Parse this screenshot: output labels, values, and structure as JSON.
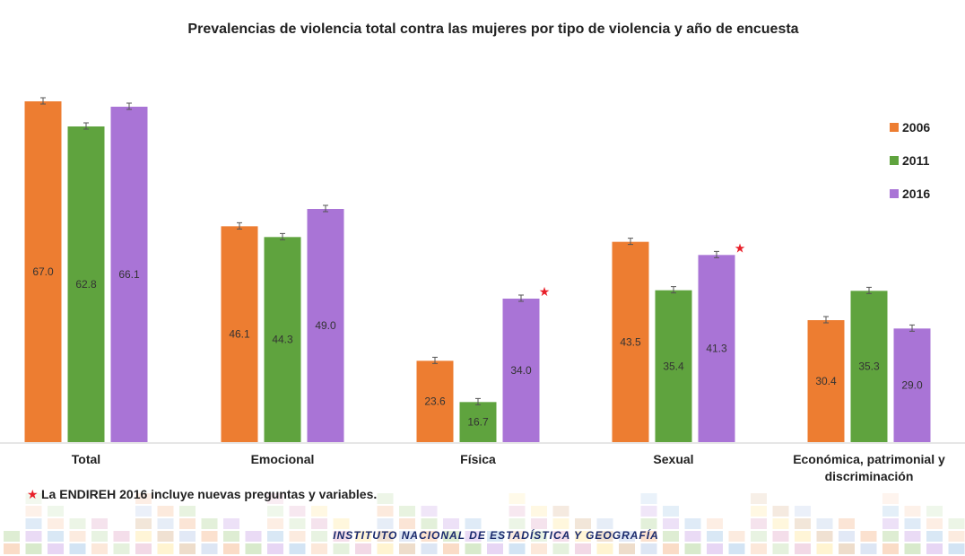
{
  "chart_data": {
    "type": "bar",
    "title": "Prevalencias de violencia total contra las mujeres por tipo de violencia y año de encuesta",
    "categories": [
      "Total",
      "Emocional",
      "Física",
      "Sexual",
      [
        "Económica, patrimonial y",
        "discriminación"
      ]
    ],
    "series": [
      {
        "name": "2006",
        "color": "#ED7D31",
        "values": [
          67.0,
          46.1,
          23.6,
          43.5,
          30.4
        ]
      },
      {
        "name": "2011",
        "color": "#5FA33E",
        "values": [
          62.8,
          44.3,
          16.7,
          35.4,
          35.3
        ]
      },
      {
        "name": "2016",
        "color": "#A974D6",
        "values": [
          66.1,
          49.0,
          34.0,
          41.3,
          29.0
        ]
      }
    ],
    "data_labels": true,
    "error_bars": true,
    "ylim": [
      10,
      70
    ],
    "axis_visible": false,
    "grid": false,
    "legend_position": "right",
    "starred": [
      {
        "series": "2016",
        "category": "Física"
      },
      {
        "series": "2016",
        "category": "Sexual"
      }
    ],
    "star_color": "#E8202A",
    "note": "La ENDIREH 2016 incluye nuevas preguntas y variables.",
    "footer": "INSTITUTO NACIONAL DE ESTADÍSTICA Y GEOGRAFÍA"
  }
}
